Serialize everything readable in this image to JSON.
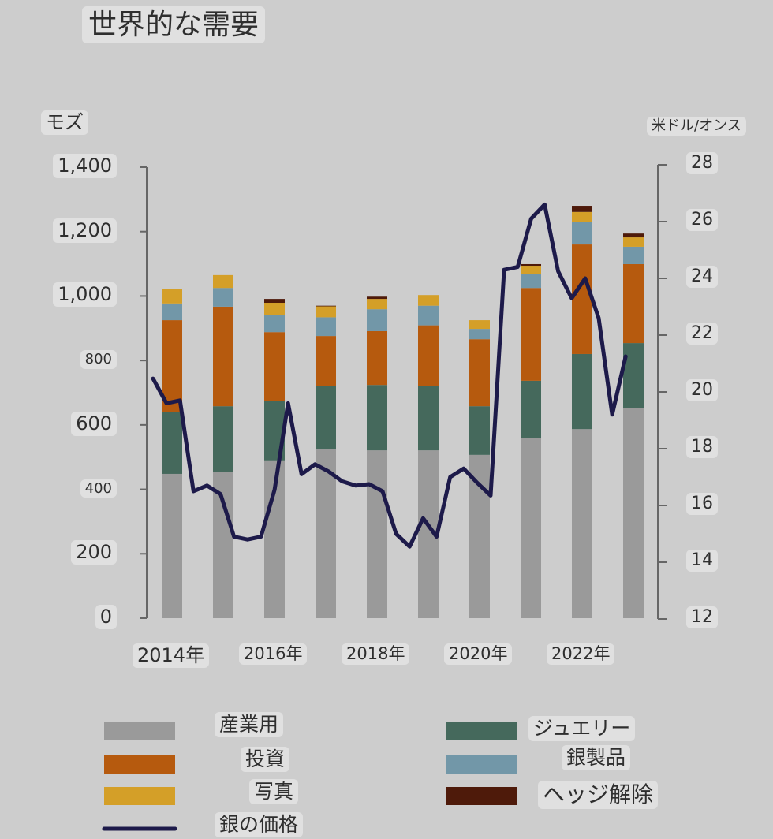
{
  "title": "世界的な需要",
  "chart_data": {
    "type": "bar",
    "stacked": true,
    "title": "世界的な需要",
    "ylabel": "モズ",
    "ylabel_right": "米ドル/オンス",
    "ylim": [
      0,
      1400
    ],
    "ylim_right": [
      12,
      28
    ],
    "yticks": [
      "0",
      "200",
      "400",
      "600",
      "800",
      "1,000",
      "1,200",
      "1,400"
    ],
    "yticks_right": [
      "12",
      "14",
      "16",
      "18",
      "20",
      "22",
      "24",
      "26",
      "28"
    ],
    "categories": [
      "2014",
      "2015",
      "2016",
      "2017",
      "2018",
      "2019",
      "2020",
      "2021",
      "2022",
      "2023"
    ],
    "xtick_labels": [
      {
        "category": "2014",
        "label": "2014年"
      },
      {
        "category": "2016",
        "label": "2016年"
      },
      {
        "category": "2018",
        "label": "2018年"
      },
      {
        "category": "2020",
        "label": "2020年"
      },
      {
        "category": "2022",
        "label": "2022年"
      }
    ],
    "series": [
      {
        "name": "産業用",
        "color": "#9a9a9a",
        "values": [
          448,
          455,
          490,
          524,
          521,
          521,
          507,
          560,
          587,
          653
        ]
      },
      {
        "name": "ジュエリー",
        "color": "#45695c",
        "values": [
          193,
          203,
          185,
          196,
          203,
          201,
          151,
          177,
          233,
          201
        ]
      },
      {
        "name": "投資",
        "color": "#b65a0e",
        "values": [
          284,
          309,
          213,
          156,
          167,
          187,
          208,
          288,
          340,
          245
        ]
      },
      {
        "name": "銀製品",
        "color": "#7297a8",
        "values": [
          52,
          58,
          54,
          58,
          68,
          61,
          32,
          44,
          71,
          54
        ]
      },
      {
        "name": "写真",
        "color": "#d49f28",
        "values": [
          44,
          40,
          37,
          34,
          32,
          33,
          27,
          25,
          30,
          29
        ]
      },
      {
        "name": "ヘッジ解除",
        "color": "#4e1a0a",
        "values": [
          0,
          0,
          12,
          2,
          7,
          0,
          0,
          5,
          19,
          12
        ]
      }
    ],
    "line_series": {
      "name": "銀の価格",
      "color": "#1d1a4a",
      "axis": "right",
      "x_range": [
        2013.63,
        2022.85
      ],
      "values": [
        20.47,
        19.6,
        19.7,
        16.5,
        16.7,
        16.4,
        14.9,
        14.8,
        14.9,
        16.55,
        19.6,
        17.1,
        17.45,
        17.2,
        16.85,
        16.7,
        16.75,
        16.5,
        15.0,
        14.55,
        15.55,
        14.9,
        17.0,
        17.3,
        16.8,
        16.35,
        24.3,
        24.4,
        26.1,
        26.6,
        24.25,
        23.3,
        24.0,
        22.6,
        19.2,
        21.25
      ]
    },
    "legend": [
      {
        "label": "産業用",
        "kind": "bar",
        "color": "#9a9a9a"
      },
      {
        "label": "投資",
        "kind": "bar",
        "color": "#b65a0e"
      },
      {
        "label": "写真",
        "kind": "bar",
        "color": "#d49f28"
      },
      {
        "label": "銀の価格",
        "kind": "line",
        "color": "#1d1a4a"
      },
      {
        "label": "ジュエリー",
        "kind": "bar",
        "color": "#45695c"
      },
      {
        "label": "銀製品",
        "kind": "bar",
        "color": "#7297a8"
      },
      {
        "label": "ヘッジ解除",
        "kind": "bar",
        "color": "#4e1a0a"
      }
    ],
    "legend_position": "bottom",
    "grid": false
  }
}
